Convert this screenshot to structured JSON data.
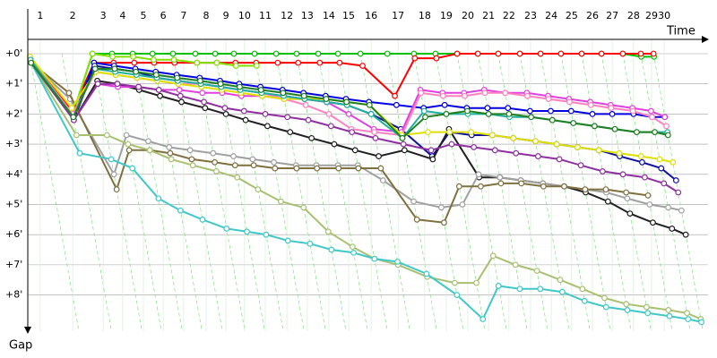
{
  "chart_data": {
    "type": "line",
    "x_label": "Time",
    "y_label": "Gap",
    "xlim": [
      0,
      23
    ],
    "ylim": [
      -0.95,
      9.2
    ],
    "xticks": [
      {
        "value": 0.42,
        "label": "1"
      },
      {
        "value": 1.52,
        "label": "2"
      },
      {
        "value": 2.55,
        "label": "3"
      },
      {
        "value": 3.21,
        "label": "4"
      },
      {
        "value": 3.91,
        "label": "5"
      },
      {
        "value": 4.58,
        "label": "6"
      },
      {
        "value": 5.27,
        "label": "7"
      },
      {
        "value": 6.03,
        "label": "8"
      },
      {
        "value": 6.7,
        "label": "9"
      },
      {
        "value": 7.33,
        "label": "10"
      },
      {
        "value": 8.03,
        "label": "11"
      },
      {
        "value": 8.76,
        "label": "12"
      },
      {
        "value": 9.45,
        "label": "13"
      },
      {
        "value": 10.18,
        "label": "14"
      },
      {
        "value": 10.85,
        "label": "15"
      },
      {
        "value": 11.61,
        "label": "16"
      },
      {
        "value": 12.52,
        "label": "17"
      },
      {
        "value": 13.42,
        "label": "18"
      },
      {
        "value": 14.15,
        "label": "19"
      },
      {
        "value": 14.88,
        "label": "20"
      },
      {
        "value": 15.58,
        "label": "21"
      },
      {
        "value": 16.27,
        "label": "22"
      },
      {
        "value": 17.0,
        "label": "23"
      },
      {
        "value": 17.7,
        "label": "24"
      },
      {
        "value": 18.39,
        "label": "25"
      },
      {
        "value": 19.09,
        "label": "26"
      },
      {
        "value": 19.76,
        "label": "27"
      },
      {
        "value": 20.48,
        "label": "28"
      },
      {
        "value": 21.09,
        "label": "29"
      },
      {
        "value": 21.52,
        "label": "30"
      }
    ],
    "yticks": [
      {
        "value": 0,
        "label": "+0'"
      },
      {
        "value": 1,
        "label": "+1'"
      },
      {
        "value": 2,
        "label": "+2'"
      },
      {
        "value": 3,
        "label": "+3'"
      },
      {
        "value": 4,
        "label": "+4'"
      },
      {
        "value": 5,
        "label": "+5'"
      },
      {
        "value": 6,
        "label": "+6'"
      },
      {
        "value": 7,
        "label": "+7'"
      },
      {
        "value": 8,
        "label": "+8'"
      }
    ],
    "grid": true,
    "series": [
      {
        "color": "#00c000",
        "values": [
          0.2,
          2.0,
          0,
          0,
          0,
          0,
          0,
          0,
          0,
          0,
          0,
          0,
          0,
          0,
          0,
          0,
          0,
          0,
          0,
          0,
          0,
          0,
          0,
          0,
          0,
          0,
          0,
          0,
          0.1,
          0.1
        ]
      },
      {
        "color": "#ff0000",
        "values": [
          0.2,
          1.9,
          0.3,
          0.3,
          0.3,
          0.3,
          0.3,
          0.3,
          0.3,
          0.3,
          0.3,
          0.3,
          0.3,
          0.3,
          0.3,
          0.4,
          1.4,
          0.15,
          0.15,
          0,
          0,
          0,
          0,
          0,
          0,
          0,
          0,
          0,
          0,
          0
        ]
      },
      {
        "color": "#80e000",
        "values": [
          0.3,
          2.0,
          0,
          0.1,
          0.1,
          0.2,
          0.2,
          0.3,
          0.3,
          0.4,
          0.4,
          null,
          null,
          null,
          null,
          null,
          null,
          null,
          null,
          null,
          null,
          null,
          null,
          null,
          null,
          null,
          null,
          null,
          null,
          null
        ]
      },
      {
        "color": "#0000e0",
        "values": [
          0.2,
          2.1,
          0.3,
          0.4,
          0.5,
          0.6,
          0.7,
          0.8,
          0.9,
          1.0,
          1.1,
          1.2,
          1.3,
          1.4,
          1.5,
          1.6,
          1.7,
          1.8,
          1.7,
          1.8,
          1.8,
          1.8,
          1.9,
          1.9,
          1.9,
          2.0,
          2.0,
          2.0,
          2.1,
          2.1
        ]
      },
      {
        "color": "#1010a0",
        "values": [
          0.3,
          2.2,
          0.4,
          0.5,
          0.6,
          0.8,
          0.9,
          1.0,
          1.1,
          1.2,
          1.3,
          1.4,
          1.5,
          1.6,
          1.7,
          2.0,
          2.5,
          3.4,
          2.6,
          2.7,
          2.7,
          2.8,
          2.9,
          3.0,
          3.1,
          3.2,
          3.4,
          3.6,
          3.8,
          4.2
        ]
      },
      {
        "color": "#202020",
        "values": [
          0.2,
          2.2,
          0.9,
          1.0,
          1.2,
          1.4,
          1.6,
          1.8,
          2.0,
          2.2,
          2.4,
          2.6,
          2.8,
          3.0,
          3.2,
          3.4,
          3.2,
          3.5,
          2.5,
          4.1,
          4.1,
          4.2,
          4.3,
          4.4,
          4.6,
          4.9,
          5.3,
          5.6,
          5.8,
          6.0
        ]
      },
      {
        "color": "#a0a0a0",
        "values": [
          0.3,
          1.5,
          4.0,
          2.7,
          2.9,
          3.1,
          3.2,
          3.3,
          3.4,
          3.5,
          3.6,
          3.7,
          3.7,
          3.7,
          3.7,
          4.2,
          4.9,
          5.1,
          5.0,
          4.0,
          4.1,
          4.2,
          4.3,
          4.4,
          4.5,
          4.6,
          4.8,
          5.0,
          5.1,
          5.2
        ]
      },
      {
        "color": "#807040",
        "values": [
          0.3,
          1.3,
          4.5,
          3.2,
          3.2,
          3.3,
          3.5,
          3.6,
          3.7,
          3.7,
          3.8,
          3.8,
          3.8,
          3.8,
          3.8,
          3.8,
          5.5,
          5.6,
          4.4,
          4.4,
          4.3,
          4.3,
          4.4,
          4.4,
          4.5,
          4.5,
          4.6,
          4.7,
          null,
          null
        ]
      },
      {
        "color": "#a8c070",
        "values": [
          0.3,
          2.7,
          2.7,
          3.0,
          3.2,
          3.5,
          3.7,
          3.9,
          4.1,
          4.5,
          4.9,
          5.1,
          5.9,
          6.4,
          6.8,
          7.0,
          7.4,
          7.6,
          7.6,
          6.7,
          7.0,
          7.2,
          7.5,
          7.8,
          8.1,
          8.3,
          8.4,
          8.5,
          8.6,
          8.8
        ]
      },
      {
        "color": "#40c8c8",
        "values": [
          0.3,
          3.3,
          3.5,
          3.8,
          4.8,
          5.2,
          5.5,
          5.8,
          5.9,
          6.0,
          6.2,
          6.3,
          6.5,
          6.6,
          6.8,
          6.9,
          7.3,
          8.0,
          8.8,
          7.7,
          7.8,
          7.8,
          7.9,
          8.2,
          8.4,
          8.5,
          8.6,
          8.7,
          8.8,
          8.9
        ]
      },
      {
        "color": "#e040e0",
        "values": [
          0.2,
          2.2,
          1.0,
          1.1,
          1.1,
          1.2,
          1.2,
          1.3,
          1.3,
          1.4,
          1.4,
          1.5,
          1.5,
          1.6,
          2.0,
          2.5,
          2.6,
          1.2,
          1.3,
          1.3,
          1.2,
          1.3,
          1.3,
          1.4,
          1.5,
          1.6,
          1.7,
          1.8,
          1.9,
          2.1
        ]
      },
      {
        "color": "#ff80c0",
        "values": [
          0.2,
          2.0,
          0.6,
          0.7,
          0.8,
          0.9,
          1.0,
          1.0,
          1.1,
          1.2,
          1.3,
          1.5,
          1.7,
          2.0,
          2.5,
          2.6,
          2.7,
          1.3,
          1.4,
          1.4,
          1.3,
          1.3,
          1.4,
          1.5,
          1.6,
          1.7,
          1.8,
          1.9,
          2.1,
          2.4
        ]
      },
      {
        "color": "#e0e000",
        "values": [
          0.1,
          1.8,
          0.6,
          0.7,
          0.8,
          0.9,
          1.0,
          1.1,
          1.2,
          1.3,
          1.4,
          1.5,
          1.5,
          1.5,
          1.6,
          1.7,
          2.7,
          2.6,
          2.6,
          2.6,
          2.7,
          2.8,
          2.9,
          3.0,
          3.1,
          3.2,
          3.3,
          3.4,
          3.5,
          3.6
        ]
      },
      {
        "color": "#9030a0",
        "values": [
          0.3,
          2.2,
          1.0,
          1.0,
          1.1,
          1.2,
          1.4,
          1.6,
          1.8,
          1.9,
          2.0,
          2.1,
          2.2,
          2.4,
          2.6,
          2.8,
          3.0,
          3.2,
          3.0,
          3.1,
          3.2,
          3.3,
          3.4,
          3.5,
          3.7,
          3.9,
          4.0,
          4.1,
          4.3,
          4.6
        ]
      },
      {
        "color": "#20b0a0",
        "values": [
          0.2,
          2.1,
          0.5,
          0.6,
          0.7,
          0.8,
          0.9,
          1.0,
          1.1,
          1.2,
          1.3,
          1.4,
          1.5,
          1.6,
          1.7,
          2.0,
          2.8,
          1.9,
          2.0,
          2.0,
          2.0,
          2.1,
          2.1,
          2.2,
          2.3,
          2.4,
          2.5,
          2.6,
          2.6,
          2.6
        ]
      },
      {
        "color": "#208020",
        "values": [
          0.3,
          2.1,
          0.5,
          0.5,
          0.6,
          0.7,
          0.8,
          0.9,
          1.0,
          1.1,
          1.2,
          1.3,
          1.4,
          1.5,
          1.6,
          1.7,
          2.8,
          2.1,
          2.0,
          1.9,
          2.0,
          2.0,
          2.1,
          2.2,
          2.3,
          2.4,
          2.5,
          2.6,
          2.6,
          2.7
        ]
      }
    ]
  }
}
